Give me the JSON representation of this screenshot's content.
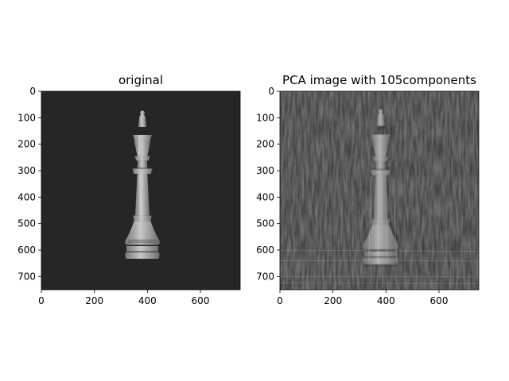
{
  "chart_data": [
    {
      "type": "image",
      "title": "original",
      "xlim": [
        0,
        750
      ],
      "ylim": [
        750,
        0
      ],
      "xticks": [
        0,
        200,
        400,
        600
      ],
      "yticks": [
        0,
        100,
        200,
        300,
        400,
        500,
        600,
        700
      ],
      "content": "chess-king-piece",
      "colors": {
        "background": "#262626",
        "piece": "#a6a6a6"
      }
    },
    {
      "type": "image",
      "title": "PCA image with 105components",
      "xlim": [
        0,
        750
      ],
      "ylim": [
        750,
        0
      ],
      "xticks": [
        0,
        200,
        400,
        600
      ],
      "yticks": [
        0,
        100,
        200,
        300,
        400,
        500,
        600,
        700
      ],
      "content": "pca-reconstructed-chess-king",
      "colors": {
        "background": "#3a3a3a",
        "piece": "#a0a0a0"
      }
    }
  ]
}
